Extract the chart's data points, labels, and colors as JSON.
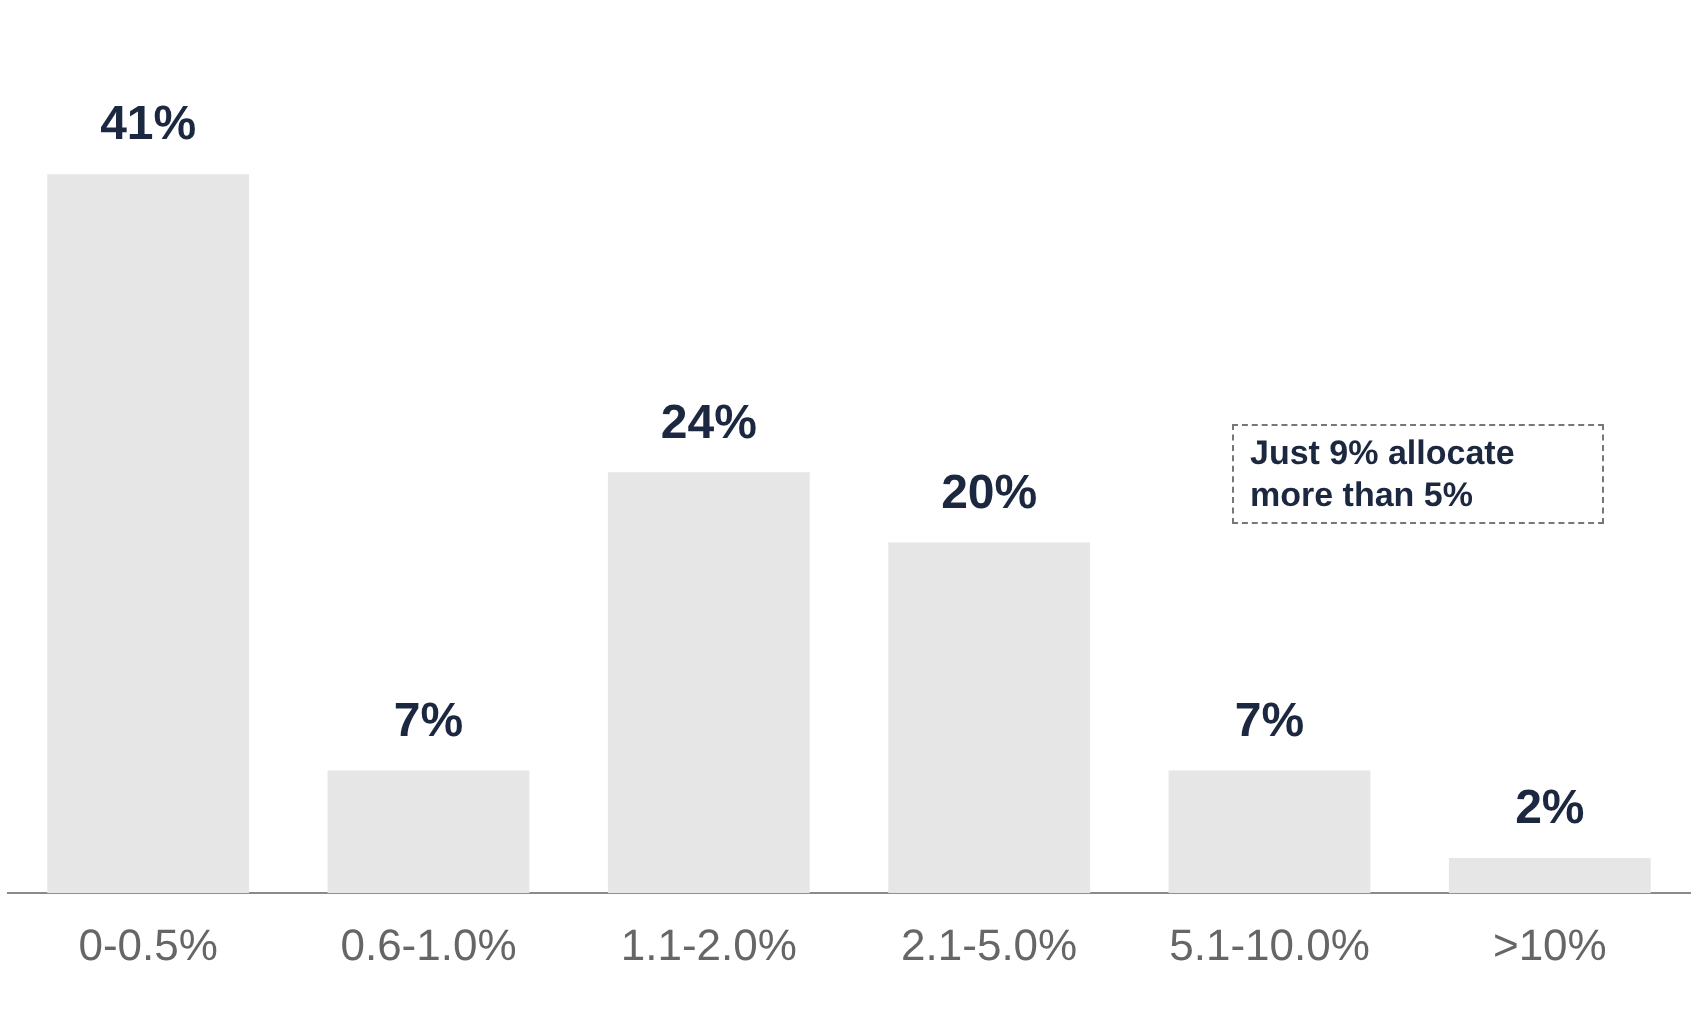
{
  "chart_data": {
    "type": "bar",
    "categories": [
      "0-0.5%",
      "0.6-1.0%",
      "1.1-2.0%",
      "2.1-5.0%",
      "5.1-10.0%",
      ">10%"
    ],
    "values": [
      41,
      7,
      24,
      20,
      7,
      2
    ],
    "value_labels": [
      "41%",
      "7%",
      "24%",
      "20%",
      "7%",
      "2%"
    ],
    "color": "#e6e6e6",
    "annotations": [
      "Just 9% allocate more than 5%"
    ],
    "tick_labels": "x",
    "grid": false,
    "legend": false
  }
}
